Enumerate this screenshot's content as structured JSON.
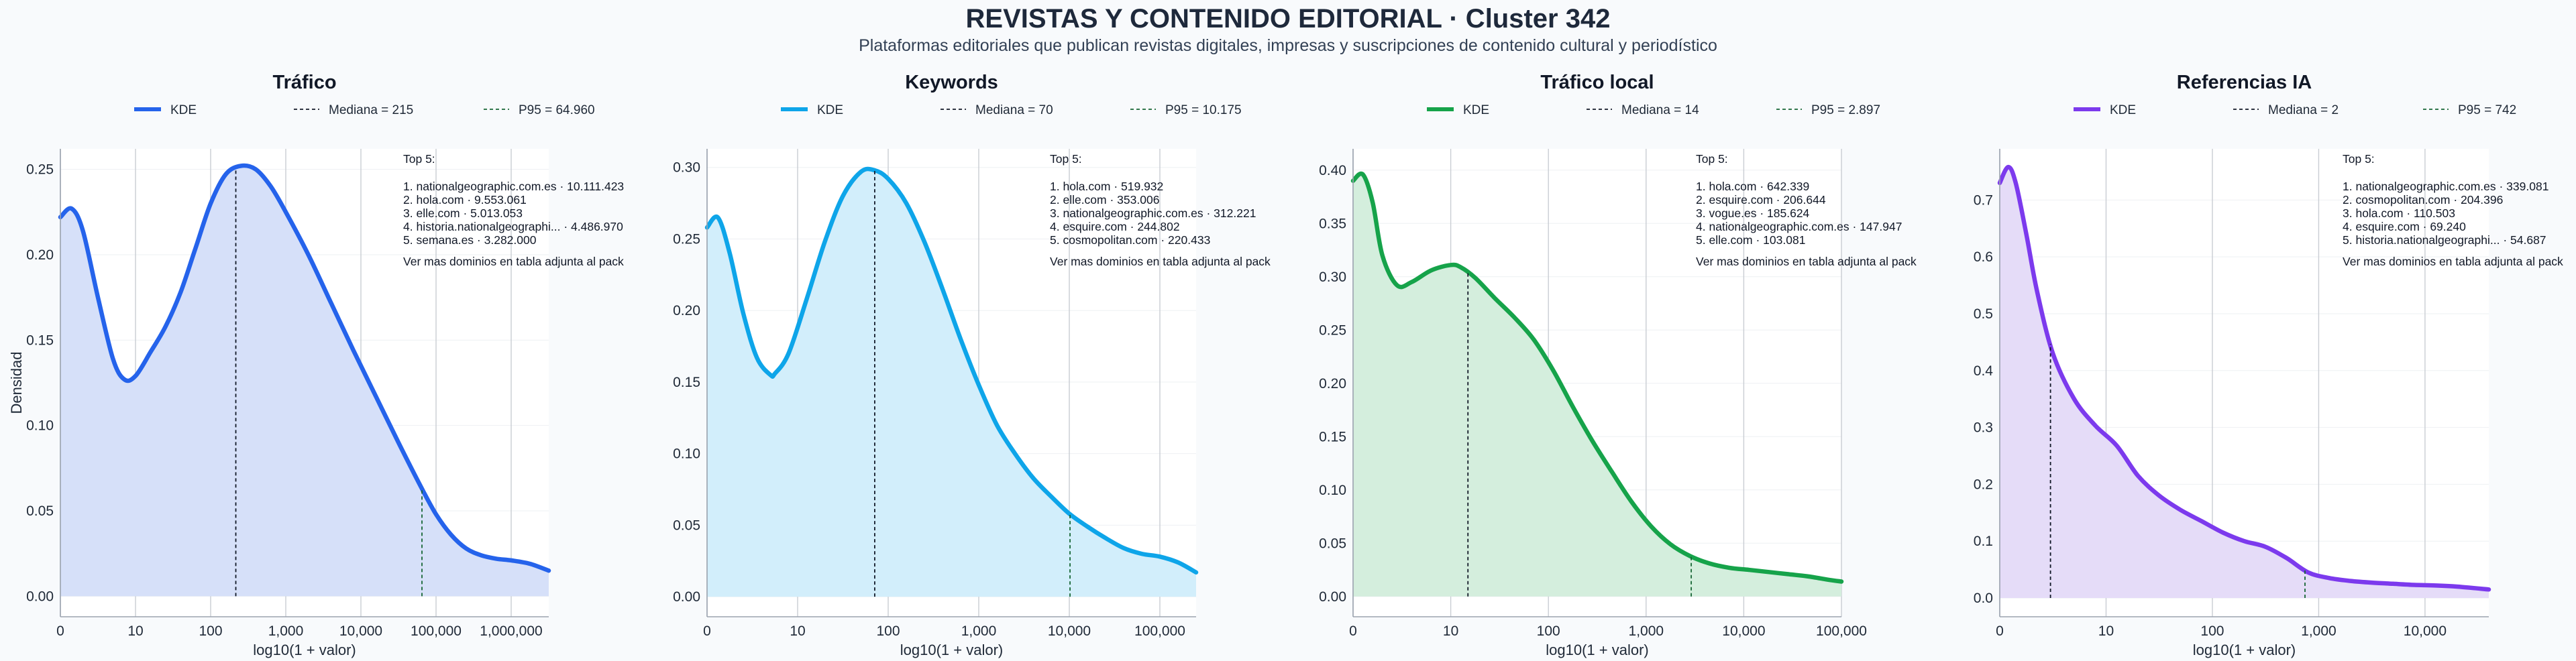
{
  "header": {
    "title": "REVISTAS Y CONTENIDO EDITORIAL · Cluster 342",
    "subtitle": "Plataformas editoriales que publican revistas digitales, impresas y suscripciones de contenido cultural y periodístico"
  },
  "chart_data": [
    {
      "type": "area",
      "title": "Tráfico",
      "color": "#2563eb",
      "fill": "#d6e0f9",
      "xlabel": "log10(1 + valor)",
      "ylabel": "Densidad",
      "xlim": [
        0,
        6.5
      ],
      "ylim": [
        -0.012,
        0.262
      ],
      "x_ticks": [
        {
          "v": 0,
          "label": "0"
        },
        {
          "v": 1,
          "label": "10"
        },
        {
          "v": 2,
          "label": "100"
        },
        {
          "v": 3,
          "label": "1,000"
        },
        {
          "v": 4,
          "label": "10,000"
        },
        {
          "v": 5,
          "label": "100,000"
        },
        {
          "v": 6,
          "label": "1,000,000"
        }
      ],
      "y_ticks": [
        {
          "v": 0,
          "label": "0.00"
        },
        {
          "v": 0.05,
          "label": "0.05"
        },
        {
          "v": 0.1,
          "label": "0.10"
        },
        {
          "v": 0.15,
          "label": "0.15"
        },
        {
          "v": 0.2,
          "label": "0.20"
        },
        {
          "v": 0.25,
          "label": "0.25"
        }
      ],
      "kde": {
        "x": [
          0,
          0.15,
          0.3,
          0.5,
          0.7,
          0.85,
          1.0,
          1.2,
          1.4,
          1.6,
          1.8,
          2.0,
          2.2,
          2.4,
          2.6,
          2.8,
          3.0,
          3.3,
          3.6,
          3.9,
          4.2,
          4.5,
          4.8,
          5.0,
          5.2,
          5.4,
          5.6,
          5.8,
          6.0,
          6.25,
          6.5
        ],
        "y": [
          0.222,
          0.227,
          0.214,
          0.175,
          0.139,
          0.127,
          0.129,
          0.143,
          0.158,
          0.178,
          0.204,
          0.23,
          0.247,
          0.252,
          0.25,
          0.24,
          0.225,
          0.2,
          0.172,
          0.144,
          0.117,
          0.09,
          0.064,
          0.048,
          0.036,
          0.028,
          0.024,
          0.022,
          0.021,
          0.019,
          0.015
        ]
      },
      "median": {
        "x": 2.335,
        "label": "Mediana = 215"
      },
      "p95": {
        "x": 4.8126,
        "label": "P95 = 64.960"
      },
      "legend": {
        "kde": "KDE"
      },
      "top": {
        "header": "Top 5:",
        "items": [
          "1. nationalgeographic.com.es · 10.111.423",
          "2. hola.com · 9.553.061",
          "3. elle.com · 5.013.053",
          "4. historia.nationalgeographi... · 4.486.970",
          "5. semana.es · 3.282.000"
        ],
        "footer": "Ver mas dominios en tabla adjunta al pack"
      }
    },
    {
      "type": "area",
      "title": "Keywords",
      "color": "#0ea5e9",
      "fill": "#d2eefb",
      "xlabel": "log10(1 + valor)",
      "ylabel": "",
      "xlim": [
        0,
        5.4
      ],
      "ylim": [
        -0.014,
        0.313
      ],
      "x_ticks": [
        {
          "v": 0,
          "label": "0"
        },
        {
          "v": 1,
          "label": "10"
        },
        {
          "v": 2,
          "label": "100"
        },
        {
          "v": 3,
          "label": "1,000"
        },
        {
          "v": 4,
          "label": "10,000"
        },
        {
          "v": 5,
          "label": "100,000"
        }
      ],
      "y_ticks": [
        {
          "v": 0,
          "label": "0.00"
        },
        {
          "v": 0.05,
          "label": "0.05"
        },
        {
          "v": 0.1,
          "label": "0.10"
        },
        {
          "v": 0.15,
          "label": "0.15"
        },
        {
          "v": 0.2,
          "label": "0.20"
        },
        {
          "v": 0.25,
          "label": "0.25"
        },
        {
          "v": 0.3,
          "label": "0.30"
        }
      ],
      "kde": {
        "x": [
          0,
          0.12,
          0.25,
          0.4,
          0.55,
          0.7,
          0.75,
          0.9,
          1.1,
          1.3,
          1.5,
          1.7,
          1.85,
          2.0,
          2.2,
          2.4,
          2.6,
          2.8,
          3.0,
          3.2,
          3.4,
          3.6,
          3.8,
          4.0,
          4.2,
          4.4,
          4.6,
          4.8,
          5.0,
          5.2,
          5.4
        ],
        "y": [
          0.258,
          0.265,
          0.24,
          0.198,
          0.167,
          0.155,
          0.156,
          0.17,
          0.208,
          0.248,
          0.28,
          0.297,
          0.298,
          0.292,
          0.275,
          0.248,
          0.215,
          0.18,
          0.148,
          0.12,
          0.1,
          0.083,
          0.07,
          0.058,
          0.049,
          0.041,
          0.034,
          0.03,
          0.028,
          0.024,
          0.017
        ]
      },
      "median": {
        "x": 1.8513,
        "label": "Mediana = 70"
      },
      "p95": {
        "x": 4.0078,
        "label": "P95 = 10.175"
      },
      "legend": {
        "kde": "KDE"
      },
      "top": {
        "header": "Top 5:",
        "items": [
          "1. hola.com · 519.932",
          "2. elle.com · 353.006",
          "3. nationalgeographic.com.es · 312.221",
          "4. esquire.com · 244.802",
          "5. cosmopolitan.com · 220.433"
        ],
        "footer": "Ver mas dominios en tabla adjunta al pack"
      }
    },
    {
      "type": "area",
      "title": "Tráfico local",
      "color": "#16a34a",
      "fill": "#d4eedd",
      "xlabel": "log10(1 + valor)",
      "ylabel": "",
      "xlim": [
        0,
        5.0
      ],
      "ylim": [
        -0.019,
        0.42
      ],
      "x_ticks": [
        {
          "v": 0,
          "label": "0"
        },
        {
          "v": 1,
          "label": "10"
        },
        {
          "v": 2,
          "label": "100"
        },
        {
          "v": 3,
          "label": "1,000"
        },
        {
          "v": 4,
          "label": "10,000"
        },
        {
          "v": 5,
          "label": "100,000"
        }
      ],
      "y_ticks": [
        {
          "v": 0,
          "label": "0.00"
        },
        {
          "v": 0.05,
          "label": "0.05"
        },
        {
          "v": 0.1,
          "label": "0.10"
        },
        {
          "v": 0.15,
          "label": "0.15"
        },
        {
          "v": 0.2,
          "label": "0.20"
        },
        {
          "v": 0.25,
          "label": "0.25"
        },
        {
          "v": 0.3,
          "label": "0.30"
        },
        {
          "v": 0.35,
          "label": "0.35"
        },
        {
          "v": 0.4,
          "label": "0.40"
        }
      ],
      "kde": {
        "x": [
          0,
          0.1,
          0.2,
          0.3,
          0.45,
          0.6,
          0.8,
          1.0,
          1.1,
          1.25,
          1.45,
          1.65,
          1.85,
          2.05,
          2.25,
          2.45,
          2.65,
          2.85,
          3.05,
          3.25,
          3.45,
          3.65,
          3.85,
          4.05,
          4.25,
          4.45,
          4.65,
          4.85,
          5.0
        ],
        "y": [
          0.39,
          0.396,
          0.37,
          0.32,
          0.292,
          0.295,
          0.306,
          0.311,
          0.309,
          0.299,
          0.28,
          0.262,
          0.241,
          0.212,
          0.178,
          0.146,
          0.117,
          0.089,
          0.066,
          0.049,
          0.038,
          0.031,
          0.027,
          0.025,
          0.023,
          0.021,
          0.019,
          0.016,
          0.014
        ]
      },
      "median": {
        "x": 1.1761,
        "label": "Mediana = 14"
      },
      "p95": {
        "x": 3.4621,
        "label": "P95 = 2.897"
      },
      "legend": {
        "kde": "KDE"
      },
      "top": {
        "header": "Top 5:",
        "items": [
          "1. hola.com · 642.339",
          "2. esquire.com · 206.644",
          "3. vogue.es · 185.624",
          "4. nationalgeographic.com.es · 147.947",
          "5. elle.com · 103.081"
        ],
        "footer": "Ver mas dominios en tabla adjunta al pack"
      }
    },
    {
      "type": "area",
      "title": "Referencias IA",
      "color": "#7c3aed",
      "fill": "#e5dcf8",
      "xlabel": "log10(1 + valor)",
      "ylabel": "",
      "xlim": [
        0,
        4.6
      ],
      "ylim": [
        -0.033,
        0.79
      ],
      "x_ticks": [
        {
          "v": 0,
          "label": "0"
        },
        {
          "v": 1,
          "label": "10"
        },
        {
          "v": 2,
          "label": "100"
        },
        {
          "v": 3,
          "label": "1,000"
        },
        {
          "v": 4,
          "label": "10,000"
        }
      ],
      "y_ticks": [
        {
          "v": 0,
          "label": "0.0"
        },
        {
          "v": 0.1,
          "label": "0.1"
        },
        {
          "v": 0.2,
          "label": "0.2"
        },
        {
          "v": 0.3,
          "label": "0.3"
        },
        {
          "v": 0.4,
          "label": "0.4"
        },
        {
          "v": 0.5,
          "label": "0.5"
        },
        {
          "v": 0.6,
          "label": "0.6"
        },
        {
          "v": 0.7,
          "label": "0.7"
        }
      ],
      "kde": {
        "x": [
          0,
          0.08,
          0.15,
          0.25,
          0.35,
          0.5,
          0.7,
          0.9,
          1.1,
          1.3,
          1.5,
          1.7,
          1.9,
          2.1,
          2.3,
          2.5,
          2.7,
          2.9,
          3.1,
          3.3,
          3.5,
          3.7,
          3.9,
          4.1,
          4.3,
          4.6
        ],
        "y": [
          0.73,
          0.758,
          0.73,
          0.64,
          0.54,
          0.43,
          0.35,
          0.303,
          0.268,
          0.215,
          0.18,
          0.155,
          0.135,
          0.115,
          0.1,
          0.09,
          0.07,
          0.045,
          0.035,
          0.03,
          0.027,
          0.025,
          0.023,
          0.022,
          0.02,
          0.015
        ]
      },
      "median": {
        "x": 0.4771,
        "label": "Mediana = 2"
      },
      "p95": {
        "x": 2.871,
        "label": "P95 = 742"
      },
      "legend": {
        "kde": "KDE"
      },
      "top": {
        "header": "Top 5:",
        "items": [
          "1. nationalgeographic.com.es · 339.081",
          "2. cosmopolitan.com · 204.396",
          "3. hola.com · 110.503",
          "4. esquire.com · 69.240",
          "5. historia.nationalgeographi... · 54.687"
        ],
        "footer": "Ver mas dominios en tabla adjunta al pack"
      }
    }
  ]
}
